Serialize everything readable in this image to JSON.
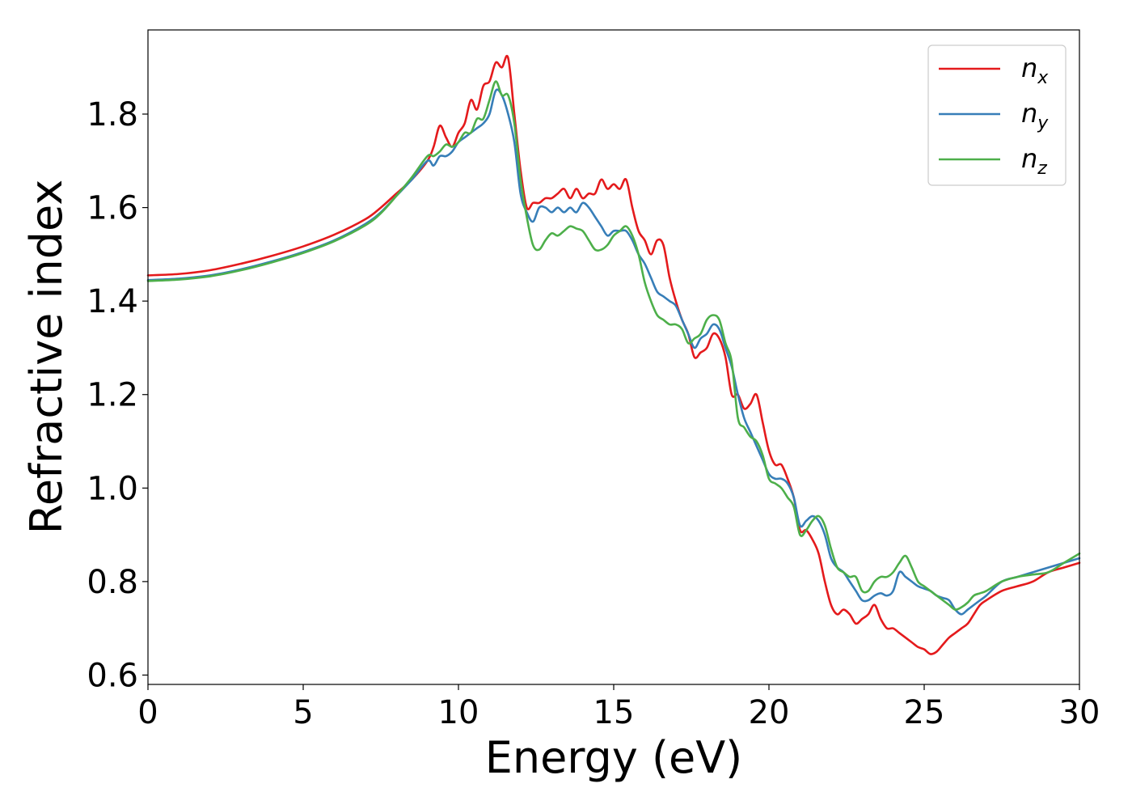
{
  "chart_data": {
    "type": "line",
    "title": "",
    "xlabel": "Energy (eV)",
    "ylabel": "Refractive index",
    "xlim": [
      0,
      30
    ],
    "ylim": [
      0.58,
      1.98
    ],
    "xticks": [
      0,
      5,
      10,
      15,
      20,
      25,
      30
    ],
    "xtick_labels": [
      "0",
      "5",
      "10",
      "15",
      "20",
      "25",
      "30"
    ],
    "yticks": [
      0.6,
      0.8,
      1.0,
      1.2,
      1.4,
      1.6,
      1.8
    ],
    "ytick_labels": [
      "0.6",
      "0.8",
      "1.0",
      "1.2",
      "1.4",
      "1.6",
      "1.8"
    ],
    "grid": false,
    "legend_position": "top-right",
    "series": [
      {
        "name": "n_x",
        "label_base": "n",
        "label_sub": "x",
        "color": "#e41a1c",
        "x": [
          0,
          1,
          2,
          3,
          4,
          5,
          6,
          7,
          7.5,
          8,
          8.5,
          9,
          9.2,
          9.4,
          9.6,
          9.8,
          10,
          10.2,
          10.4,
          10.6,
          10.8,
          11,
          11.2,
          11.4,
          11.6,
          11.8,
          12,
          12.2,
          12.4,
          12.6,
          12.8,
          13,
          13.2,
          13.4,
          13.6,
          13.8,
          14,
          14.2,
          14.4,
          14.6,
          14.8,
          15,
          15.2,
          15.4,
          15.6,
          15.8,
          16,
          16.2,
          16.4,
          16.6,
          16.8,
          17,
          17.2,
          17.4,
          17.6,
          17.8,
          18,
          18.2,
          18.4,
          18.6,
          18.8,
          19,
          19.2,
          19.4,
          19.6,
          19.8,
          20,
          20.2,
          20.4,
          20.6,
          20.8,
          21,
          21.2,
          21.4,
          21.6,
          21.8,
          22,
          22.2,
          22.4,
          22.6,
          22.8,
          23,
          23.2,
          23.4,
          23.6,
          23.8,
          24,
          24.2,
          24.4,
          24.6,
          24.8,
          25,
          25.2,
          25.4,
          25.6,
          25.8,
          26,
          26.2,
          26.4,
          26.6,
          26.8,
          27,
          27.5,
          28,
          28.5,
          29,
          29.5,
          30
        ],
        "y": [
          1.455,
          1.458,
          1.466,
          1.48,
          1.497,
          1.517,
          1.542,
          1.575,
          1.6,
          1.63,
          1.66,
          1.7,
          1.73,
          1.775,
          1.75,
          1.73,
          1.76,
          1.78,
          1.83,
          1.81,
          1.86,
          1.87,
          1.91,
          1.9,
          1.92,
          1.8,
          1.68,
          1.6,
          1.61,
          1.61,
          1.62,
          1.62,
          1.63,
          1.64,
          1.62,
          1.64,
          1.62,
          1.63,
          1.63,
          1.66,
          1.64,
          1.65,
          1.64,
          1.66,
          1.6,
          1.55,
          1.53,
          1.5,
          1.53,
          1.52,
          1.45,
          1.4,
          1.36,
          1.33,
          1.28,
          1.29,
          1.3,
          1.33,
          1.32,
          1.28,
          1.2,
          1.2,
          1.17,
          1.18,
          1.2,
          1.14,
          1.08,
          1.05,
          1.05,
          1.02,
          0.98,
          0.91,
          0.91,
          0.89,
          0.86,
          0.8,
          0.75,
          0.73,
          0.74,
          0.73,
          0.71,
          0.72,
          0.73,
          0.75,
          0.72,
          0.7,
          0.7,
          0.69,
          0.68,
          0.67,
          0.66,
          0.655,
          0.645,
          0.65,
          0.665,
          0.68,
          0.69,
          0.7,
          0.71,
          0.73,
          0.75,
          0.76,
          0.78,
          0.79,
          0.8,
          0.82,
          0.83,
          0.84
        ]
      },
      {
        "name": "n_y",
        "label_base": "n",
        "label_sub": "y",
        "color": "#377eb8",
        "x": [
          0,
          1,
          2,
          3,
          4,
          5,
          6,
          7,
          7.5,
          8,
          8.5,
          9,
          9.2,
          9.4,
          9.6,
          9.8,
          10,
          10.2,
          10.4,
          10.6,
          10.8,
          11,
          11.2,
          11.4,
          11.6,
          11.8,
          12,
          12.2,
          12.4,
          12.6,
          12.8,
          13,
          13.2,
          13.4,
          13.6,
          13.8,
          14,
          14.2,
          14.4,
          14.6,
          14.8,
          15,
          15.2,
          15.4,
          15.6,
          15.8,
          16,
          16.2,
          16.4,
          16.6,
          16.8,
          17,
          17.2,
          17.4,
          17.6,
          17.8,
          18,
          18.2,
          18.4,
          18.6,
          18.8,
          19,
          19.2,
          19.4,
          19.6,
          19.8,
          20,
          20.2,
          20.4,
          20.6,
          20.8,
          21,
          21.2,
          21.4,
          21.6,
          21.8,
          22,
          22.2,
          22.4,
          22.6,
          22.8,
          23,
          23.2,
          23.4,
          23.6,
          23.8,
          24,
          24.2,
          24.4,
          24.6,
          24.8,
          25,
          25.2,
          25.4,
          25.6,
          25.8,
          26,
          26.2,
          26.4,
          26.6,
          26.8,
          27,
          27.5,
          28,
          28.5,
          29,
          29.5,
          30
        ],
        "y": [
          1.445,
          1.448,
          1.455,
          1.468,
          1.485,
          1.505,
          1.53,
          1.565,
          1.59,
          1.625,
          1.66,
          1.7,
          1.69,
          1.71,
          1.71,
          1.72,
          1.74,
          1.75,
          1.76,
          1.77,
          1.78,
          1.8,
          1.85,
          1.84,
          1.8,
          1.74,
          1.63,
          1.59,
          1.57,
          1.6,
          1.6,
          1.59,
          1.6,
          1.59,
          1.6,
          1.59,
          1.61,
          1.6,
          1.58,
          1.56,
          1.54,
          1.55,
          1.55,
          1.55,
          1.53,
          1.5,
          1.48,
          1.45,
          1.42,
          1.41,
          1.4,
          1.39,
          1.36,
          1.33,
          1.3,
          1.32,
          1.33,
          1.35,
          1.34,
          1.3,
          1.26,
          1.2,
          1.15,
          1.12,
          1.09,
          1.06,
          1.03,
          1.02,
          1.02,
          1.01,
          0.98,
          0.92,
          0.93,
          0.94,
          0.93,
          0.9,
          0.85,
          0.83,
          0.82,
          0.8,
          0.78,
          0.76,
          0.76,
          0.77,
          0.775,
          0.77,
          0.78,
          0.82,
          0.81,
          0.8,
          0.79,
          0.785,
          0.78,
          0.77,
          0.765,
          0.76,
          0.74,
          0.73,
          0.74,
          0.75,
          0.76,
          0.77,
          0.8,
          0.81,
          0.82,
          0.83,
          0.84,
          0.85
        ]
      },
      {
        "name": "n_z",
        "label_base": "n",
        "label_sub": "z",
        "color": "#4daf4a",
        "x": [
          0,
          1,
          2,
          3,
          4,
          5,
          6,
          7,
          7.5,
          8,
          8.5,
          9,
          9.2,
          9.4,
          9.6,
          9.8,
          10,
          10.2,
          10.4,
          10.6,
          10.8,
          11,
          11.2,
          11.4,
          11.6,
          11.8,
          12,
          12.2,
          12.4,
          12.6,
          12.8,
          13,
          13.2,
          13.4,
          13.6,
          13.8,
          14,
          14.2,
          14.4,
          14.6,
          14.8,
          15,
          15.2,
          15.4,
          15.6,
          15.8,
          16,
          16.2,
          16.4,
          16.6,
          16.8,
          17,
          17.2,
          17.4,
          17.6,
          17.8,
          18,
          18.2,
          18.4,
          18.6,
          18.8,
          19,
          19.2,
          19.4,
          19.6,
          19.8,
          20,
          20.2,
          20.4,
          20.6,
          20.8,
          21,
          21.2,
          21.4,
          21.6,
          21.8,
          22,
          22.2,
          22.4,
          22.6,
          22.8,
          23,
          23.2,
          23.4,
          23.6,
          23.8,
          24,
          24.2,
          24.4,
          24.6,
          24.8,
          25,
          25.2,
          25.4,
          25.6,
          25.8,
          26,
          26.2,
          26.4,
          26.6,
          26.8,
          27,
          27.5,
          28,
          28.5,
          29,
          29.5,
          30
        ],
        "y": [
          1.443,
          1.446,
          1.453,
          1.466,
          1.483,
          1.503,
          1.528,
          1.562,
          1.588,
          1.625,
          1.665,
          1.71,
          1.71,
          1.72,
          1.735,
          1.73,
          1.74,
          1.76,
          1.76,
          1.79,
          1.79,
          1.83,
          1.87,
          1.84,
          1.84,
          1.78,
          1.66,
          1.58,
          1.52,
          1.51,
          1.53,
          1.545,
          1.54,
          1.55,
          1.56,
          1.555,
          1.55,
          1.53,
          1.51,
          1.51,
          1.52,
          1.54,
          1.55,
          1.56,
          1.54,
          1.5,
          1.44,
          1.4,
          1.37,
          1.36,
          1.35,
          1.35,
          1.34,
          1.31,
          1.32,
          1.33,
          1.36,
          1.37,
          1.36,
          1.31,
          1.27,
          1.15,
          1.13,
          1.11,
          1.1,
          1.07,
          1.02,
          1.01,
          1.0,
          0.98,
          0.96,
          0.9,
          0.91,
          0.93,
          0.94,
          0.92,
          0.87,
          0.83,
          0.82,
          0.81,
          0.81,
          0.78,
          0.78,
          0.8,
          0.81,
          0.81,
          0.82,
          0.84,
          0.855,
          0.83,
          0.8,
          0.79,
          0.78,
          0.77,
          0.76,
          0.75,
          0.74,
          0.745,
          0.755,
          0.77,
          0.775,
          0.78,
          0.8,
          0.81,
          0.815,
          0.82,
          0.84,
          0.86
        ]
      }
    ]
  }
}
